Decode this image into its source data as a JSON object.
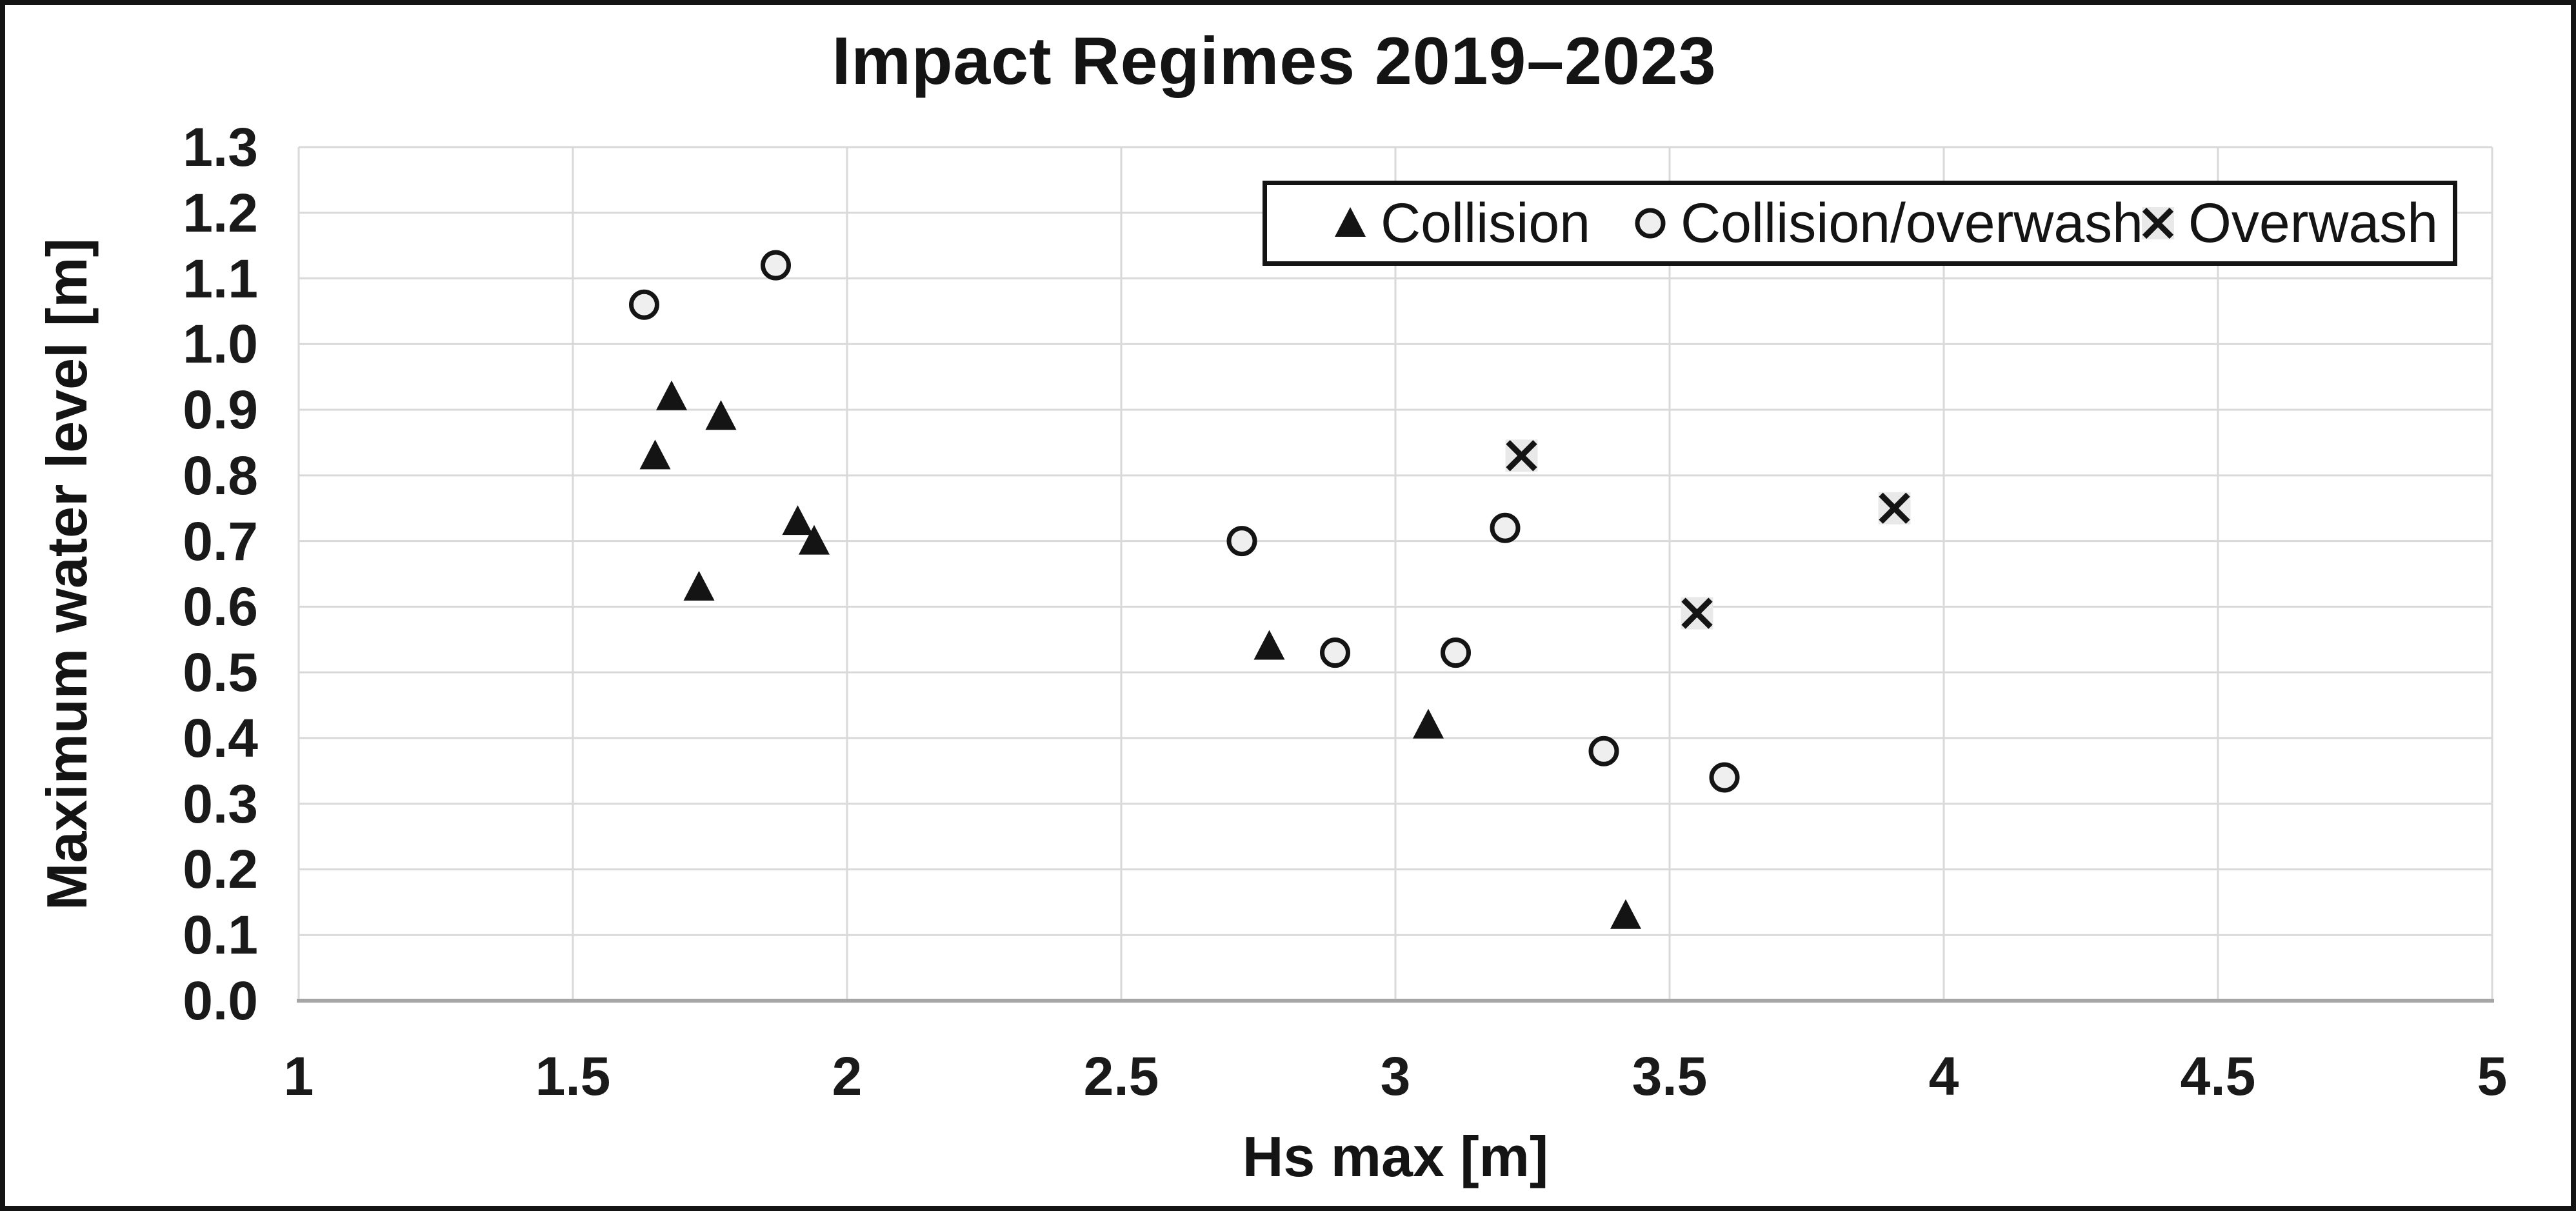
{
  "colors": {
    "frame_border": "#141414",
    "text": "#141414",
    "tick_text": "#1a1a1a",
    "gridline": "#d9d9d9",
    "axis_line": "#a6a6a6",
    "marker_stroke": "#141414",
    "circle_fill": "#efefef",
    "x_marker_fill": "#e9e9e9",
    "background": "#ffffff"
  },
  "chart_data": {
    "type": "scatter",
    "title": "Impact Regimes 2019–2023",
    "xlabel": "Hs max [m]",
    "ylabel": "Maximum water level [m]",
    "xlim": [
      1,
      5
    ],
    "ylim": [
      0.0,
      1.3
    ],
    "x_ticks": [
      1,
      1.5,
      2,
      2.5,
      3,
      3.5,
      4,
      4.5,
      5
    ],
    "x_tick_labels": [
      "1",
      "1.5",
      "2",
      "2.5",
      "3",
      "3.5",
      "4",
      "4.5",
      "5"
    ],
    "y_ticks": [
      0.0,
      0.1,
      0.2,
      0.3,
      0.4,
      0.5,
      0.6,
      0.7,
      0.8,
      0.9,
      1.0,
      1.1,
      1.2,
      1.3
    ],
    "y_tick_labels": [
      "0.0",
      "0.1",
      "0.2",
      "0.3",
      "0.4",
      "0.5",
      "0.6",
      "0.7",
      "0.8",
      "0.9",
      "1.0",
      "1.1",
      "1.2",
      "1.3"
    ],
    "grid": true,
    "legend_position": "top-right-inside",
    "series": [
      {
        "name": "Collision",
        "marker": "triangle",
        "points": [
          [
            1.68,
            0.92
          ],
          [
            1.77,
            0.89
          ],
          [
            1.65,
            0.83
          ],
          [
            1.91,
            0.73
          ],
          [
            1.94,
            0.7
          ],
          [
            1.73,
            0.63
          ],
          [
            2.77,
            0.54
          ],
          [
            3.06,
            0.42
          ],
          [
            3.42,
            0.13
          ]
        ]
      },
      {
        "name": "Collision/overwash",
        "marker": "circle",
        "points": [
          [
            1.63,
            1.06
          ],
          [
            1.87,
            1.12
          ],
          [
            2.72,
            0.7
          ],
          [
            2.89,
            0.53
          ],
          [
            3.11,
            0.53
          ],
          [
            3.2,
            0.72
          ],
          [
            3.38,
            0.38
          ],
          [
            3.6,
            0.34
          ]
        ]
      },
      {
        "name": "Overwash",
        "marker": "x",
        "points": [
          [
            3.23,
            0.83
          ],
          [
            3.55,
            0.59
          ],
          [
            3.91,
            0.75
          ]
        ]
      }
    ]
  }
}
